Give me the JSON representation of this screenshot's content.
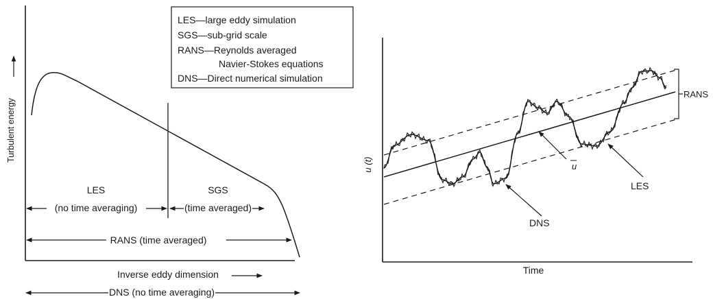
{
  "left_panel": {
    "y_axis_label": "Turbulent energy",
    "x_axis_label": "Inverse eddy dimension",
    "legend": [
      {
        "id": "les",
        "text": "LES—large eddy simulation"
      },
      {
        "id": "sgs",
        "text": "SGS—sub-grid scale"
      },
      {
        "id": "rans1",
        "text": "RANS—Reynolds averaged"
      },
      {
        "id": "rans2",
        "text": "Navier-Stokes equations"
      },
      {
        "id": "dns",
        "text": "DNS—Direct numerical simulation"
      }
    ],
    "regions": {
      "les_title": "LES",
      "les_sub": "(no time averaging)",
      "sgs_title": "SGS",
      "sgs_sub": "(time averaged)",
      "rans": "RANS (time averaged)",
      "dns": "DNS (no time averaging)"
    }
  },
  "right_panel": {
    "y_axis_label": "u (t)",
    "x_axis_label": "Time",
    "labels": {
      "rans": "RANS",
      "mean": "u",
      "les": "LES",
      "dns": "DNS"
    }
  }
}
